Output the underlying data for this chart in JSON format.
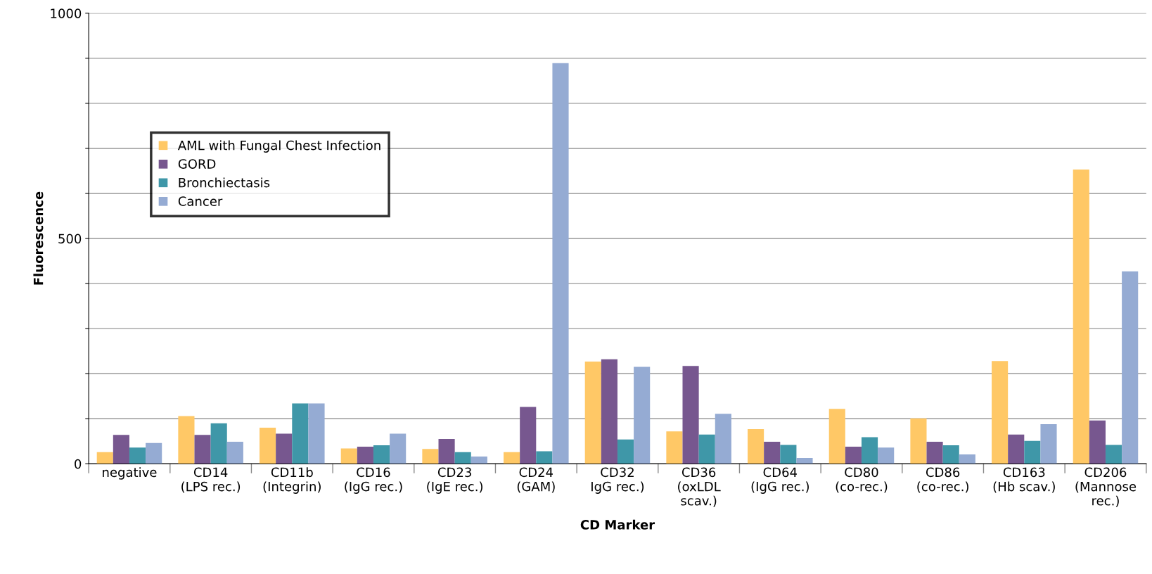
{
  "chart_data": {
    "type": "bar",
    "xlabel": "CD Marker",
    "ylabel": "Fluorescence",
    "categories": [
      "negative",
      "CD14\n(LPS rec.)",
      "CD11b\n(Integrin)",
      "CD16\n(IgG rec.)",
      "CD23\n(IgE rec.)",
      "CD24\n(GAM)",
      "CD32\nIgG rec.)",
      "CD36\n(oxLDL\nscav.)",
      "CD64\n(IgG rec.)",
      "CD80\n(co-rec.)",
      "CD86\n(co-rec.)",
      "CD163\n(Hb scav.)",
      "CD206\n(Mannose\nrec.)"
    ],
    "series": [
      {
        "name": "AML with Fungal Chest Infection",
        "color": "#ffc866",
        "values": [
          26,
          106,
          80,
          34,
          33,
          26,
          227,
          72,
          77,
          122,
          101,
          228,
          653
        ]
      },
      {
        "name": "GORD",
        "color": "#77578f",
        "values": [
          64,
          64,
          67,
          38,
          55,
          126,
          232,
          217,
          49,
          38,
          49,
          65,
          96
        ]
      },
      {
        "name": "Bronchiectasis",
        "color": "#3f97a8",
        "values": [
          36,
          90,
          134,
          41,
          26,
          28,
          54,
          65,
          42,
          59,
          41,
          51,
          42
        ]
      },
      {
        "name": "Cancer",
        "color": "#95abd3",
        "values": [
          46,
          49,
          134,
          67,
          16,
          889,
          215,
          111,
          13,
          36,
          21,
          88,
          427
        ]
      }
    ],
    "ylim": [
      0,
      1000
    ],
    "yticks": [
      0,
      {
        "value": 100,
        "label": null
      },
      {
        "value": 200,
        "label": null
      },
      {
        "value": 300,
        "label": null
      },
      {
        "value": 400,
        "label": null
      },
      500,
      {
        "value": 600,
        "label": null
      },
      {
        "value": 700,
        "label": null
      },
      {
        "value": 800,
        "label": null
      },
      {
        "value": 900,
        "label": null
      },
      1000
    ],
    "grid": "y",
    "legend": "top left"
  }
}
